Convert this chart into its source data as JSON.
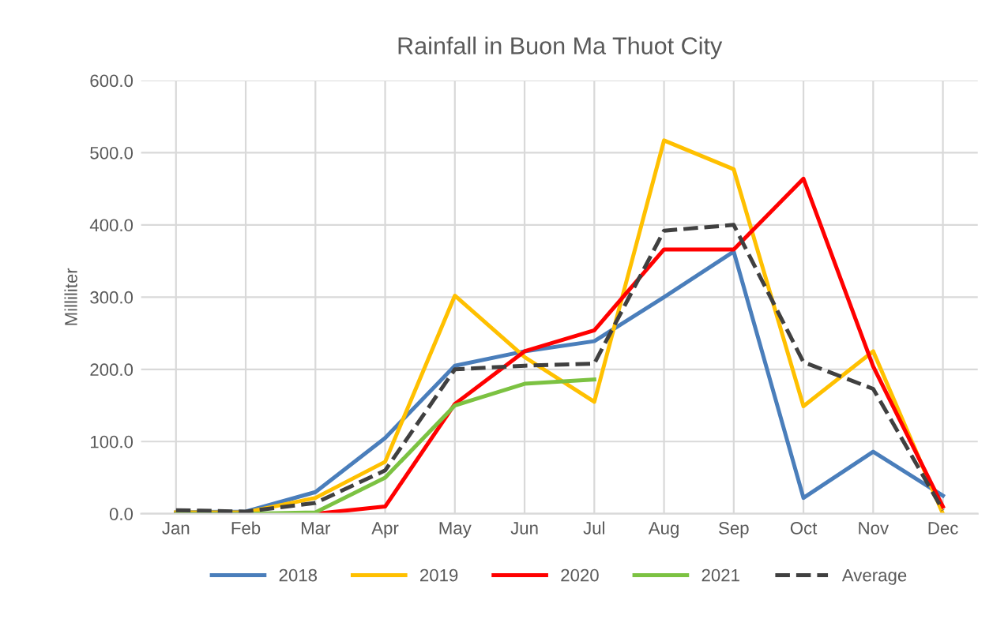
{
  "chart_data": {
    "type": "line",
    "title": "Rainfall in Buon Ma Thuot City",
    "ylabel": "Milliliter",
    "categories": [
      "Jan",
      "Feb",
      "Mar",
      "Apr",
      "May",
      "Jun",
      "Jul",
      "Aug",
      "Sep",
      "Oct",
      "Nov",
      "Dec"
    ],
    "series": [
      {
        "name": "2018",
        "color": "#4a7ebb",
        "values": [
          2,
          3,
          30,
          105,
          205,
          225,
          239,
          300,
          363,
          22,
          86,
          25
        ]
      },
      {
        "name": "2019",
        "color": "#ffc000",
        "values": [
          2,
          2,
          22,
          72,
          302,
          217,
          155,
          517,
          477,
          149,
          225,
          0
        ]
      },
      {
        "name": "2020",
        "color": "#ff0000",
        "values": [
          0,
          0,
          0,
          10,
          152,
          225,
          254,
          366,
          366,
          464,
          204,
          10
        ]
      },
      {
        "name": "2021",
        "color": "#7cc242",
        "values": [
          0,
          0,
          2,
          50,
          150,
          180,
          186,
          null,
          null,
          null,
          null,
          null
        ]
      },
      {
        "name": "Average",
        "color": "#404040",
        "line_style": "dashed",
        "values": [
          5,
          3,
          15,
          60,
          200,
          205,
          208,
          392,
          400,
          210,
          173,
          5
        ]
      }
    ],
    "ylim": [
      0,
      600
    ],
    "yticks": [
      {
        "value": 0,
        "label": "0.0"
      },
      {
        "value": 100,
        "label": "100.0"
      },
      {
        "value": 200,
        "label": "200.0"
      },
      {
        "value": 300,
        "label": "300.0"
      },
      {
        "value": 400,
        "label": "400.0"
      },
      {
        "value": 500,
        "label": "500.0"
      },
      {
        "value": 600,
        "label": "600.0"
      }
    ],
    "grid": true,
    "legend": "bottom",
    "line_style": "solid"
  }
}
